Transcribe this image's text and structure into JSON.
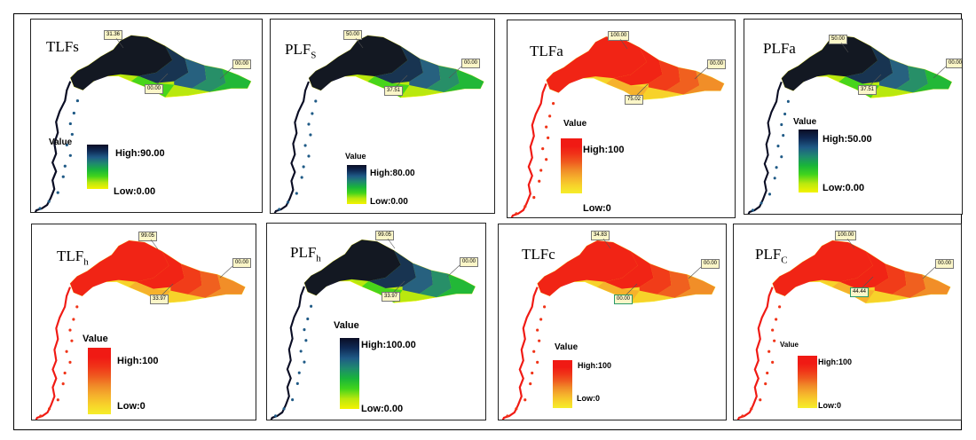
{
  "panels": [
    {
      "id": "p1",
      "title": "TLFs",
      "scheme": "blue",
      "callouts": [
        "31.36",
        "00.00",
        "00.00"
      ],
      "legend": {
        "title": "Value",
        "high": "High:90.00",
        "low": "Low:0.00"
      }
    },
    {
      "id": "p2",
      "title": "PLF",
      "sub": "S",
      "scheme": "blue",
      "callouts": [
        "50.00",
        "00.00",
        "37.51"
      ],
      "legend": {
        "title": "Value",
        "high": "High:80.00",
        "low": "Low:0.00"
      }
    },
    {
      "id": "p3",
      "title": "TLFa",
      "scheme": "red",
      "callouts": [
        "100.00",
        "00.00",
        "75.02"
      ],
      "legend": {
        "title": "Value",
        "high": "High:100",
        "low": "Low:0"
      }
    },
    {
      "id": "p4",
      "title": "PLFa",
      "scheme": "blue",
      "callouts": [
        "50.00",
        "00.00",
        "37.51"
      ],
      "legend": {
        "title": "Value",
        "high": "High:50.00",
        "low": "Low:0.00"
      }
    },
    {
      "id": "p5",
      "title": "TLF",
      "sub": "h",
      "scheme": "red",
      "callouts": [
        "99.05",
        "00.00",
        "33.97"
      ],
      "legend": {
        "title": "Value",
        "high": "High:100",
        "low": "Low:0"
      }
    },
    {
      "id": "p6",
      "title": "PLF",
      "sub": "h",
      "scheme": "blue",
      "callouts": [
        "99.05",
        "00.00",
        "33.97"
      ],
      "legend": {
        "title": "Value",
        "high": "High:100.00",
        "low": "Low:0.00"
      }
    },
    {
      "id": "p7",
      "title": "TLFc",
      "scheme": "red",
      "callouts": [
        "34.83",
        "00.00",
        "00.00"
      ],
      "legend": {
        "title": "Value",
        "high": "High:100",
        "low": "Low:0"
      }
    },
    {
      "id": "p8",
      "title": "PLF",
      "sub": "C",
      "scheme": "red",
      "callouts": [
        "100.00",
        "00.00",
        "44.44"
      ],
      "legend": {
        "title": "Value",
        "high": "High:100",
        "low": "Low:0"
      }
    }
  ],
  "colors": {
    "blue_scheme": [
      "#0a0d24",
      "#0f2a55",
      "#1f5a86",
      "#1f8a6e",
      "#19b53a",
      "#41d41c",
      "#b9e80e",
      "#f4f200"
    ],
    "red_scheme": [
      "#f01a14",
      "#f01a14",
      "#f03418",
      "#ef5a1f",
      "#f08a28",
      "#f5b02c",
      "#f7d22a",
      "#f6ee2a"
    ]
  }
}
